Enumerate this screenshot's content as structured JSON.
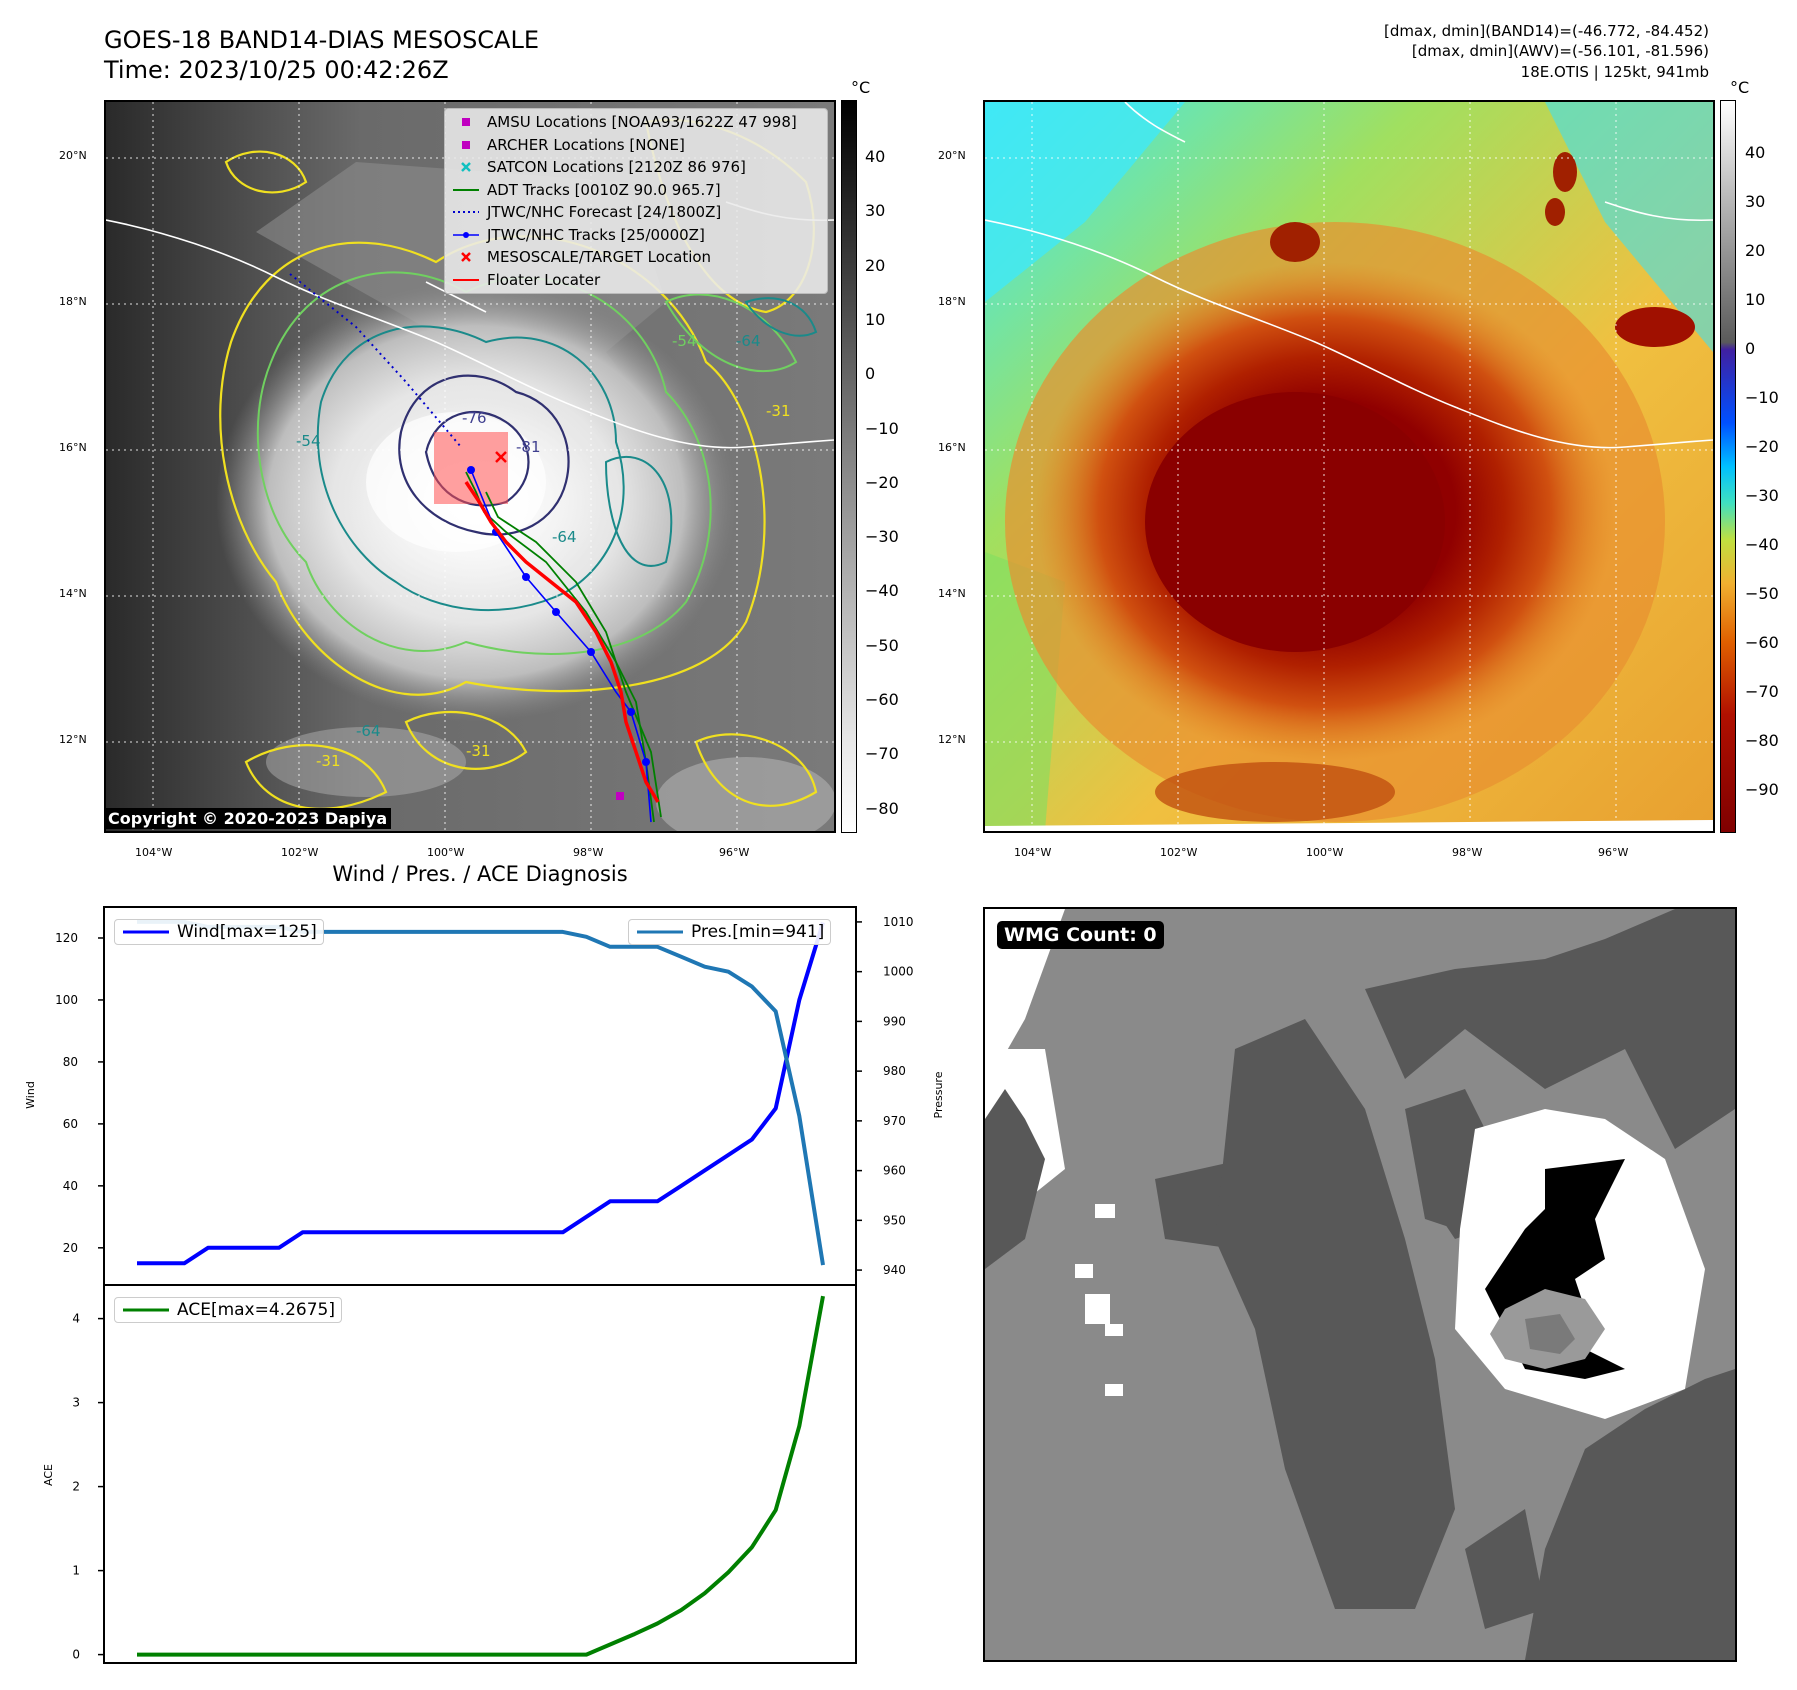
{
  "header": {
    "title_line1": "GOES-18 BAND14-DIAS MESOSCALE",
    "title_line2": "Time: 2023/10/25 00:42:26Z",
    "info_line1": "[dmax, dmin](BAND14)=(-46.772, -84.452)",
    "info_line2": "[dmax, dmin](AWV)=(-56.101, -81.596)",
    "info_line3": "18E.OTIS | 125kt, 941mb"
  },
  "map_axes": {
    "lat_labels": [
      "20°N",
      "18°N",
      "16°N",
      "14°N",
      "12°N"
    ],
    "lon_labels": [
      "104°W",
      "102°W",
      "100°W",
      "98°W",
      "96°W"
    ]
  },
  "colorbar_left": {
    "unit": "°C",
    "ticks": [
      "40",
      "30",
      "20",
      "10",
      "0",
      "−10",
      "−20",
      "−30",
      "−40",
      "−50",
      "−60",
      "−70",
      "−80"
    ]
  },
  "colorbar_right": {
    "unit": "°C",
    "ticks": [
      "40",
      "30",
      "20",
      "10",
      "0",
      "−10",
      "−20",
      "−30",
      "−40",
      "−50",
      "−60",
      "−70",
      "−80",
      "−90"
    ]
  },
  "legend": {
    "items": [
      {
        "label": "AMSU Locations [NOAA93/1622Z 47 998]",
        "symbol": "square",
        "color": "#c000c0"
      },
      {
        "label": "ARCHER Locations [NONE]",
        "symbol": "square",
        "color": "#c000c0"
      },
      {
        "label": "SATCON Locations [2120Z 86 976]",
        "symbol": "x",
        "color": "#10c0c0"
      },
      {
        "label": "ADT Tracks [0010Z 90.0 965.7]",
        "symbol": "line",
        "color": "#008000"
      },
      {
        "label": "JTWC/NHC Forecast [24/1800Z]",
        "symbol": "dotted",
        "color": "#0000cc"
      },
      {
        "label": "JTWC/NHC Tracks [25/0000Z]",
        "symbol": "dotline",
        "color": "#0000ff"
      },
      {
        "label": "MESOSCALE/TARGET Location",
        "symbol": "x",
        "color": "#ff0000"
      },
      {
        "label": "Floater Locater",
        "symbol": "line",
        "color": "#ff0000"
      }
    ]
  },
  "contour_labels": [
    "-76",
    "-81",
    "-64",
    "-64",
    "-64",
    "-54",
    "-54",
    "-31",
    "-31",
    "-31"
  ],
  "copyright": "Copyright © 2020-2023 Dapiya",
  "wmg": {
    "label": "WMG Count: 0"
  },
  "chart_data": [
    {
      "type": "line",
      "title": "Wind / Pres. / ACE Diagnosis",
      "ylabel": "Wind",
      "y2label": "Pressure",
      "ylim": [
        8,
        130
      ],
      "y2lim": [
        937,
        1013
      ],
      "yticks": [
        20,
        40,
        60,
        80,
        100,
        120
      ],
      "y2ticks": [
        940,
        950,
        960,
        970,
        980,
        990,
        1000,
        1010
      ],
      "x": [
        0,
        1,
        2,
        3,
        4,
        5,
        6,
        7,
        8,
        9,
        10,
        11,
        12,
        13,
        14,
        15,
        16,
        17,
        18,
        19,
        20,
        21,
        22,
        23,
        24,
        25,
        26,
        27,
        28,
        29
      ],
      "series": [
        {
          "name": "Wind[max=125]",
          "axis": "left",
          "color": "#0000ff",
          "values": [
            15,
            15,
            15,
            20,
            20,
            20,
            20,
            25,
            25,
            25,
            25,
            25,
            25,
            25,
            25,
            25,
            25,
            25,
            25,
            30,
            35,
            35,
            35,
            40,
            45,
            50,
            55,
            65,
            100,
            125
          ]
        },
        {
          "name": "Pres.[min=941]",
          "axis": "right",
          "color": "#1f77b4",
          "values": [
            1010,
            1010,
            1010,
            1009,
            1009,
            1009,
            1009,
            1008,
            1008,
            1008,
            1008,
            1008,
            1008,
            1008,
            1008,
            1008,
            1008,
            1008,
            1008,
            1007,
            1005,
            1005,
            1005,
            1003,
            1001,
            1000,
            997,
            992,
            971,
            941
          ]
        }
      ]
    },
    {
      "type": "line",
      "ylabel": "ACE",
      "ylim": [
        -0.1,
        4.4
      ],
      "yticks": [
        0,
        1,
        2,
        3,
        4
      ],
      "x": [
        0,
        1,
        2,
        3,
        4,
        5,
        6,
        7,
        8,
        9,
        10,
        11,
        12,
        13,
        14,
        15,
        16,
        17,
        18,
        19,
        20,
        21,
        22,
        23,
        24,
        25,
        26,
        27,
        28,
        29
      ],
      "series": [
        {
          "name": "ACE[max=4.2675]",
          "color": "#008000",
          "values": [
            0,
            0,
            0,
            0,
            0,
            0,
            0,
            0,
            0,
            0,
            0,
            0,
            0,
            0,
            0,
            0,
            0,
            0,
            0,
            0,
            0.12,
            0.24,
            0.37,
            0.53,
            0.73,
            0.98,
            1.28,
            1.72,
            2.72,
            4.2675
          ]
        }
      ]
    }
  ]
}
